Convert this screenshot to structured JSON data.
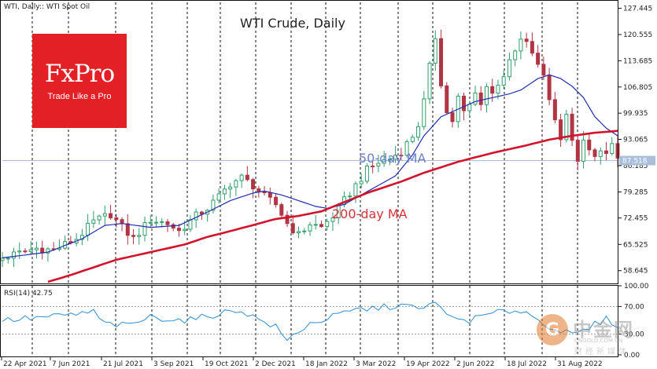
{
  "chart_data": {
    "type": "candlestick",
    "header": "WTI, Daily:: WTI Spot Oil",
    "title": "WTI Crude, Daily",
    "annotations": {
      "ma50_label": "50-day MA",
      "ma200_label": "200-day MA",
      "last_price": "87.518"
    },
    "price_axis": {
      "ylim": [
        55.5,
        129
      ],
      "ticks": [
        "127.445",
        "120.555",
        "113.685",
        "106.805",
        "99.935",
        "93.065",
        "86.185",
        "79.285",
        "72.455",
        "65.525",
        "58.645"
      ]
    },
    "rsi_axis": {
      "label": "RSI(14) 42.75",
      "ylim": [
        0,
        100
      ],
      "ticks": [
        "100.00",
        "70.00",
        "30.00",
        "0.00"
      ],
      "levels": [
        30,
        70
      ]
    },
    "x_labels": [
      "22 Apr 2021",
      "7 Jun 2021",
      "21 Jul 2021",
      "3 Sep 2021",
      "19 Oct 2021",
      "2 Dec 2021",
      "18 Jan 2022",
      "3 Mar 2022",
      "19 Apr 2022",
      "2 Jun 2022",
      "18 Jul 2022",
      "31 Aug 2022"
    ],
    "series_price_anchors": [
      [
        0,
        62
      ],
      [
        6,
        64.5
      ],
      [
        9,
        64
      ],
      [
        13,
        67
      ],
      [
        16,
        71.5
      ],
      [
        19,
        73.5
      ],
      [
        21,
        70
      ],
      [
        23,
        67
      ],
      [
        26,
        72
      ],
      [
        29,
        71
      ],
      [
        31,
        69
      ],
      [
        34,
        73
      ],
      [
        36,
        75
      ],
      [
        38,
        78
      ],
      [
        40,
        81.5
      ],
      [
        42,
        83
      ],
      [
        44,
        81
      ],
      [
        46,
        78
      ],
      [
        48,
        76
      ],
      [
        50,
        71
      ],
      [
        52,
        68
      ],
      [
        54,
        71
      ],
      [
        56,
        70
      ],
      [
        58,
        73
      ],
      [
        60,
        77
      ],
      [
        62,
        81
      ],
      [
        64,
        85
      ],
      [
        66,
        87
      ],
      [
        68,
        88
      ],
      [
        70,
        90
      ],
      [
        72,
        94
      ],
      [
        73,
        97
      ],
      [
        74,
        103
      ],
      [
        75,
        112
      ],
      [
        76,
        120
      ],
      [
        77,
        108
      ],
      [
        78,
        100
      ],
      [
        79,
        98
      ],
      [
        80,
        104
      ],
      [
        81,
        100
      ],
      [
        82,
        102
      ],
      [
        83,
        105
      ],
      [
        84,
        103
      ],
      [
        85,
        107
      ],
      [
        86,
        105
      ],
      [
        87,
        108
      ],
      [
        88,
        110
      ],
      [
        89,
        113
      ],
      [
        90,
        116
      ],
      [
        91,
        119
      ],
      [
        92,
        118
      ],
      [
        93,
        116
      ],
      [
        94,
        112
      ],
      [
        95,
        110
      ],
      [
        96,
        104
      ],
      [
        97,
        98
      ],
      [
        98,
        94
      ],
      [
        99,
        100
      ],
      [
        100,
        92
      ],
      [
        101,
        88
      ],
      [
        102,
        92
      ],
      [
        103,
        90
      ],
      [
        104,
        88
      ],
      [
        105,
        91
      ],
      [
        106,
        89
      ],
      [
        107,
        91
      ],
      [
        108,
        88
      ]
    ],
    "series_ma50_anchors": [
      [
        0,
        62
      ],
      [
        8,
        63.5
      ],
      [
        14,
        67
      ],
      [
        18,
        70.5
      ],
      [
        21,
        71
      ],
      [
        26,
        70
      ],
      [
        31,
        70.5
      ],
      [
        36,
        74
      ],
      [
        40,
        77
      ],
      [
        44,
        79
      ],
      [
        46,
        79.5
      ],
      [
        49,
        78.5
      ],
      [
        52,
        77
      ],
      [
        55,
        75.5
      ],
      [
        57,
        75
      ],
      [
        60,
        76
      ],
      [
        63,
        78.5
      ],
      [
        66,
        81
      ],
      [
        69,
        83.5
      ],
      [
        72,
        89
      ],
      [
        74,
        94
      ],
      [
        77,
        99
      ],
      [
        80,
        101
      ],
      [
        83,
        103
      ],
      [
        86,
        104
      ],
      [
        89,
        105
      ],
      [
        91,
        106
      ],
      [
        94,
        109
      ],
      [
        96,
        110
      ],
      [
        98,
        109
      ],
      [
        100,
        107
      ],
      [
        102,
        104
      ],
      [
        104,
        99
      ],
      [
        106,
        96
      ],
      [
        108,
        94
      ]
    ],
    "series_ma200_anchors": [
      [
        8,
        55.7
      ],
      [
        12,
        57.5
      ],
      [
        16,
        59.5
      ],
      [
        20,
        61.5
      ],
      [
        26,
        63.5
      ],
      [
        32,
        65.5
      ],
      [
        36,
        67.5
      ],
      [
        40,
        69
      ],
      [
        44,
        70.6
      ],
      [
        48,
        72.2
      ],
      [
        52,
        73
      ],
      [
        56,
        74.2
      ],
      [
        60,
        76.6
      ],
      [
        64,
        79
      ],
      [
        68,
        81
      ],
      [
        70,
        82
      ],
      [
        74,
        84.3
      ],
      [
        80,
        87.2
      ],
      [
        86,
        89.5
      ],
      [
        92,
        91.5
      ],
      [
        96,
        93
      ],
      [
        100,
        94
      ],
      [
        104,
        94.8
      ],
      [
        108,
        95.3
      ]
    ],
    "series_rsi_anchors": [
      [
        0,
        50
      ],
      [
        10,
        56
      ],
      [
        16,
        62
      ],
      [
        18,
        45
      ],
      [
        22,
        42
      ],
      [
        26,
        55
      ],
      [
        32,
        50
      ],
      [
        34,
        52
      ],
      [
        38,
        60
      ],
      [
        42,
        65
      ],
      [
        44,
        55
      ],
      [
        48,
        40
      ],
      [
        50,
        20
      ],
      [
        52,
        35
      ],
      [
        54,
        45
      ],
      [
        58,
        55
      ],
      [
        62,
        65
      ],
      [
        66,
        68
      ],
      [
        70,
        72
      ],
      [
        74,
        65
      ],
      [
        76,
        80
      ],
      [
        78,
        55
      ],
      [
        80,
        52
      ],
      [
        82,
        50
      ],
      [
        86,
        60
      ],
      [
        88,
        62
      ],
      [
        90,
        65
      ],
      [
        92,
        62
      ],
      [
        94,
        50
      ],
      [
        96,
        42
      ],
      [
        98,
        35
      ],
      [
        100,
        28
      ],
      [
        102,
        34
      ],
      [
        104,
        44
      ],
      [
        106,
        52
      ],
      [
        108,
        43
      ]
    ]
  },
  "logo": {
    "main": "FxPro",
    "sub": "Trade Like a Pro"
  },
  "watermark": {
    "circle": "G",
    "main": "中金网",
    "url": "CNGOLD.COM.CN",
    "sub": "财经新媒体"
  }
}
